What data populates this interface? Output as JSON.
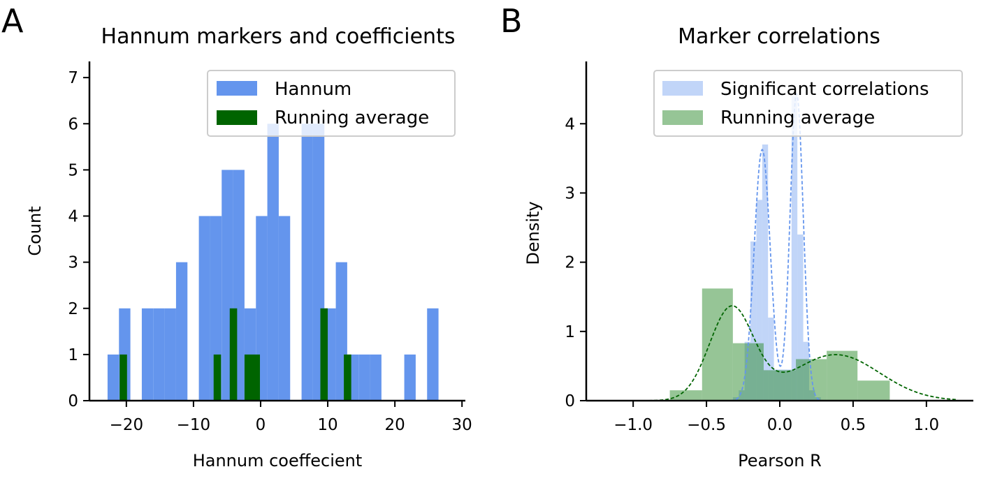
{
  "panels": {
    "a": {
      "letter": "A",
      "title": "Hannum markers and coefficients"
    },
    "b": {
      "letter": "B",
      "title": "Marker correlations"
    }
  },
  "colors": {
    "hannum": "#6495ed",
    "running": "#006400",
    "significant": "#6495ed",
    "running_b": "#2e8b2e"
  },
  "chart_data": [
    {
      "type": "bar",
      "title": "Hannum markers and coefficients",
      "xlabel": "Hannum coeffecient",
      "ylabel": "Count",
      "xlim": [
        -25.5,
        30.5
      ],
      "ylim": [
        0,
        7.35
      ],
      "xticks": [
        -20,
        -10,
        0,
        10,
        20,
        30
      ],
      "xtick_labels": [
        "−20",
        "−10",
        "0",
        "10",
        "20",
        "30"
      ],
      "yticks": [
        0,
        1,
        2,
        3,
        4,
        5,
        6,
        7
      ],
      "ytick_labels": [
        "0",
        "1",
        "2",
        "3",
        "4",
        "5",
        "6",
        "7"
      ],
      "legend": {
        "placement": "upper right",
        "entries": [
          "Hannum",
          "Running average"
        ]
      },
      "grid": false,
      "series": [
        {
          "name": "Hannum",
          "bin_edges": [
            -22.8,
            -21.1,
            -19.4,
            -17.7,
            -16.0,
            -14.3,
            -12.6,
            -10.9,
            -9.2,
            -7.5,
            -5.8,
            -4.1,
            -2.4,
            -0.7,
            1.0,
            2.7,
            4.4,
            6.1,
            7.8,
            9.5,
            11.2,
            12.9,
            14.6,
            16.3,
            18.0,
            19.7,
            21.4,
            23.1,
            24.8,
            26.5,
            28.2
          ],
          "counts": [
            1,
            2,
            0,
            2,
            2,
            2,
            3,
            0,
            4,
            4,
            5,
            5,
            2,
            4,
            6,
            4,
            0,
            6,
            6,
            2,
            3,
            1,
            1,
            1,
            0,
            0,
            1,
            0,
            2,
            0
          ]
        },
        {
          "name": "Running average",
          "bars": [
            {
              "left": -21.0,
              "right": -19.9,
              "count": 1
            },
            {
              "left": -7.0,
              "right": -5.9,
              "count": 1
            },
            {
              "left": -4.6,
              "right": -3.5,
              "count": 2
            },
            {
              "left": -2.4,
              "right": -0.1,
              "count": 1
            },
            {
              "left": 8.9,
              "right": 10.0,
              "count": 2
            },
            {
              "left": 12.4,
              "right": 13.5,
              "count": 1
            }
          ]
        }
      ]
    },
    {
      "type": "bar",
      "title": "Marker correlations",
      "xlabel": "Pearson R",
      "ylabel": "Density",
      "xlim": [
        -1.32,
        1.32
      ],
      "ylim": [
        0,
        4.9
      ],
      "xticks": [
        -1.0,
        -0.5,
        0.0,
        0.5,
        1.0
      ],
      "xtick_labels": [
        "−1.0",
        "−0.5",
        "0.0",
        "0.5",
        "1.0"
      ],
      "yticks": [
        0,
        1,
        2,
        3,
        4
      ],
      "ytick_labels": [
        "0",
        "1",
        "2",
        "3",
        "4"
      ],
      "legend": {
        "placement": "upper right",
        "entries": [
          "Significant correlations",
          "Running average"
        ]
      },
      "grid": false,
      "series": [
        {
          "name": "Significant correlations",
          "bin_edges": [
            -0.32,
            -0.28,
            -0.24,
            -0.2,
            -0.16,
            -0.12,
            -0.08,
            -0.04,
            0.0,
            0.04,
            0.08,
            0.12,
            0.16,
            0.2,
            0.24,
            0.28,
            0.32
          ],
          "density": [
            0.05,
            0.15,
            0.85,
            2.3,
            2.9,
            3.7,
            1.2,
            0.45,
            0.45,
            0.45,
            4.4,
            2.4,
            0.85,
            0.15,
            0.05,
            0.0
          ],
          "kde": {
            "components": [
              {
                "weight": 0.5,
                "mean": -0.12,
                "sd": 0.055
              },
              {
                "weight": 0.5,
                "mean": 0.115,
                "sd": 0.045
              }
            ],
            "x_range": [
              -0.45,
              0.45
            ]
          }
        },
        {
          "name": "Running average",
          "bin_edges": [
            -0.75,
            -0.53,
            -0.32,
            -0.11,
            0.11,
            0.32,
            0.53,
            0.75
          ],
          "density": [
            0.15,
            1.62,
            0.83,
            0.44,
            0.6,
            0.72,
            0.29
          ],
          "kde": {
            "components": [
              {
                "weight": 0.5,
                "mean": -0.33,
                "sd": 0.15
              },
              {
                "weight": 0.5,
                "mean": 0.38,
                "sd": 0.3
              }
            ],
            "x_range": [
              -1.2,
              1.2
            ]
          }
        }
      ]
    }
  ]
}
